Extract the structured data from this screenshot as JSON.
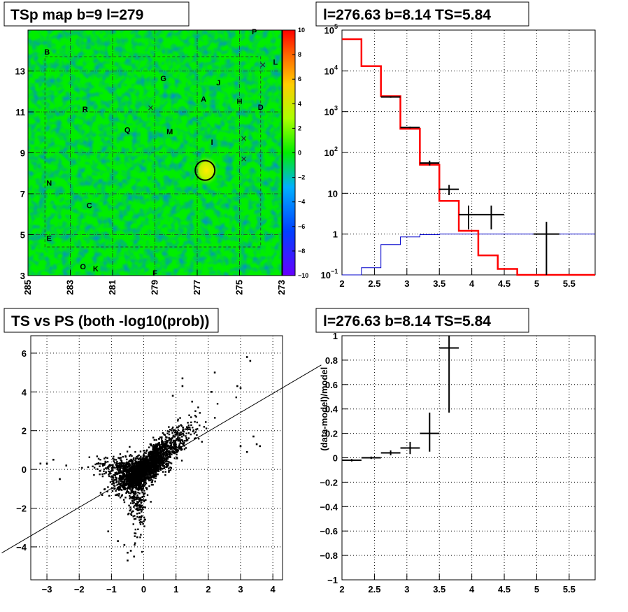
{
  "chart_data": [
    {
      "type": "heatmap",
      "title": "TSp map b=9 l=279",
      "x_ticks": [
        "285",
        "283",
        "281",
        "279",
        "277",
        "275",
        "273"
      ],
      "y_ticks": [
        "3",
        "5",
        "7",
        "9",
        "11",
        "13"
      ],
      "xlim": [
        285,
        273
      ],
      "ylim": [
        3,
        15
      ],
      "colorbar_ticks": [
        "10",
        "8",
        "6",
        "4",
        "2",
        "0",
        "−2",
        "−4",
        "−6",
        "−8",
        "−10"
      ],
      "colorbar_range": [
        -10,
        10
      ],
      "source_labels": [
        {
          "text": "P",
          "l": 274.3,
          "b": 14.8
        },
        {
          "text": "B",
          "l": 284.1,
          "b": 13.8
        },
        {
          "text": "L",
          "l": 273.3,
          "b": 13.3
        },
        {
          "text": "G",
          "l": 278.6,
          "b": 12.5
        },
        {
          "text": "J",
          "l": 276.0,
          "b": 12.3
        },
        {
          "text": "A",
          "l": 276.7,
          "b": 11.5
        },
        {
          "text": "H",
          "l": 275.0,
          "b": 11.4
        },
        {
          "text": "D",
          "l": 274.0,
          "b": 11.1
        },
        {
          "text": "R",
          "l": 282.3,
          "b": 11.0
        },
        {
          "text": "Q",
          "l": 280.3,
          "b": 10.0
        },
        {
          "text": "M",
          "l": 278.3,
          "b": 9.9
        },
        {
          "text": "I",
          "l": 276.3,
          "b": 9.4
        },
        {
          "text": "N",
          "l": 284.0,
          "b": 7.4
        },
        {
          "text": "C",
          "l": 282.1,
          "b": 6.3
        },
        {
          "text": "E",
          "l": 284.0,
          "b": 4.7
        },
        {
          "text": "O",
          "l": 282.4,
          "b": 3.3
        },
        {
          "text": "K",
          "l": 281.8,
          "b": 3.2
        },
        {
          "text": "F",
          "l": 279.0,
          "b": 3.0
        }
      ],
      "marker_circle": {
        "l": 276.63,
        "b": 8.14
      },
      "cross_markers": [
        {
          "l": 279.2,
          "b": 11.2
        },
        {
          "l": 273.9,
          "b": 13.3
        },
        {
          "l": 274.8,
          "b": 9.7
        },
        {
          "l": 274.8,
          "b": 8.7
        }
      ]
    },
    {
      "type": "line",
      "title": "l=276.63 b=8.14 TS=5.84",
      "xlim": [
        2,
        5.9
      ],
      "x_ticks": [
        "2",
        "2.5",
        "3",
        "3.5",
        "4",
        "4.5",
        "5",
        "5.5"
      ],
      "y_scale": "log",
      "ylim": [
        0.1,
        100000
      ],
      "y_ticks": [
        {
          "v": 0.1,
          "base": "10",
          "exp": "−1"
        },
        {
          "v": 1,
          "base": "1",
          "exp": ""
        },
        {
          "v": 10,
          "base": "10",
          "exp": ""
        },
        {
          "v": 100,
          "base": "10",
          "exp": "2"
        },
        {
          "v": 1000,
          "base": "10",
          "exp": "3"
        },
        {
          "v": 10000,
          "base": "10",
          "exp": "4"
        },
        {
          "v": 100000,
          "base": "10",
          "exp": "5"
        }
      ],
      "grid": true,
      "bin_edges": [
        2,
        2.3,
        2.6,
        2.9,
        3.2,
        3.5,
        3.8,
        4.1,
        4.4,
        4.7,
        5.0,
        5.3,
        5.6,
        5.9
      ],
      "model_red": [
        60000,
        13000,
        2400,
        380,
        50,
        6.5,
        1.2,
        0.3,
        0.14,
        0.1,
        0.1,
        0.1,
        0.1
      ],
      "model_blue": [
        0.1,
        0.15,
        0.55,
        0.85,
        0.97,
        1.0,
        1.0,
        1.0,
        1.0,
        1.0,
        1.0,
        1.0,
        1.0
      ],
      "data_points": [
        {
          "x": 2.75,
          "y": 2300,
          "xerr": 0.15,
          "ylo": 2200,
          "yhi": 2400
        },
        {
          "x": 3.05,
          "y": 410,
          "xerr": 0.15,
          "ylo": 390,
          "yhi": 430
        },
        {
          "x": 3.35,
          "y": 55,
          "xerr": 0.15,
          "ylo": 48,
          "yhi": 63
        },
        {
          "x": 3.65,
          "y": 12.5,
          "xerr": 0.15,
          "ylo": 9,
          "yhi": 16
        },
        {
          "x": 3.95,
          "y": 3,
          "xerr": 0.15,
          "ylo": 1.3,
          "yhi": 5
        },
        {
          "x": 4.3,
          "y": 3,
          "xerr": 0.2,
          "ylo": 1.3,
          "yhi": 5
        },
        {
          "x": 5.15,
          "y": 1,
          "xerr": 0.2,
          "ylo": 0.1,
          "yhi": 2
        }
      ]
    },
    {
      "type": "scatter",
      "title": "TS vs PS (both -log10(prob))",
      "xlim": [
        -3.5,
        4.3
      ],
      "ylim": [
        -5.7,
        6.9
      ],
      "x_ticks": [
        {
          "v": -3,
          "t": "−3"
        },
        {
          "v": -2,
          "t": "−2"
        },
        {
          "v": -1,
          "t": "−1"
        },
        {
          "v": 0,
          "t": "0"
        },
        {
          "v": 1,
          "t": "1"
        },
        {
          "v": 2,
          "t": "2"
        },
        {
          "v": 3,
          "t": "3"
        },
        {
          "v": 4,
          "t": "4"
        }
      ],
      "y_ticks": [
        {
          "v": -4,
          "t": "−4"
        },
        {
          "v": -2,
          "t": "−2"
        },
        {
          "v": 0,
          "t": "0"
        },
        {
          "v": 2,
          "t": "2"
        },
        {
          "v": 4,
          "t": "4"
        },
        {
          "v": 6,
          "t": "6"
        }
      ],
      "grid": true,
      "fit_line": {
        "slope": 0.98,
        "intercept": 0.0
      },
      "outlier_points": [
        [
          3.2,
          5.8
        ],
        [
          3.3,
          5.6
        ],
        [
          2.2,
          5.0
        ],
        [
          1.2,
          4.7
        ],
        [
          2.9,
          4.3
        ],
        [
          3.0,
          4.2
        ],
        [
          2.1,
          4.0
        ],
        [
          3.4,
          1.7
        ],
        [
          3.6,
          1.2
        ],
        [
          3.5,
          1.3
        ],
        [
          3.2,
          0.9
        ],
        [
          3.0,
          1.2
        ],
        [
          -3.0,
          0.3
        ],
        [
          -3.2,
          0.3
        ],
        [
          -2.8,
          0.5
        ],
        [
          -2.4,
          0.2
        ],
        [
          -2.6,
          -0.5
        ],
        [
          -0.5,
          -4.3
        ],
        [
          -0.3,
          -4.5
        ],
        [
          -0.5,
          -4.7
        ],
        [
          -0.4,
          -4.2
        ],
        [
          -0.8,
          -3.7
        ],
        [
          -0.6,
          -3.9
        ],
        [
          -1.1,
          -3.2
        ],
        [
          -0.2,
          -3.5
        ],
        [
          1.2,
          4.3
        ],
        [
          0.9,
          3.8
        ],
        [
          1.5,
          3.5
        ]
      ]
    },
    {
      "type": "line",
      "title": "l=276.63 b=8.14 TS=5.84",
      "ylabel": "(data-model)/model",
      "xlim": [
        2,
        5.9
      ],
      "ylim": [
        -1,
        1
      ],
      "x_ticks": [
        "2",
        "2.5",
        "3",
        "3.5",
        "4",
        "4.5",
        "5",
        "5.5"
      ],
      "y_ticks": [
        {
          "v": 1,
          "t": "1"
        },
        {
          "v": 0.8,
          "t": "0.8"
        },
        {
          "v": 0.6,
          "t": "0.6"
        },
        {
          "v": 0.4,
          "t": "0.4"
        },
        {
          "v": 0.2,
          "t": "0.2"
        },
        {
          "v": 0,
          "t": "0"
        },
        {
          "v": -0.2,
          "t": "−0.2"
        },
        {
          "v": -0.4,
          "t": "−0.4"
        },
        {
          "v": -0.6,
          "t": "−0.6"
        },
        {
          "v": -0.8,
          "t": "−0.8"
        },
        {
          "v": -1,
          "t": "−1"
        }
      ],
      "grid": true,
      "data_points": [
        {
          "x": 2.15,
          "y": -0.02,
          "xerr": 0.15,
          "ylo": -0.03,
          "yhi": -0.01
        },
        {
          "x": 2.45,
          "y": 0.0,
          "xerr": 0.15,
          "ylo": -0.01,
          "yhi": 0.01
        },
        {
          "x": 2.75,
          "y": 0.04,
          "xerr": 0.15,
          "ylo": 0.02,
          "yhi": 0.06
        },
        {
          "x": 3.05,
          "y": 0.08,
          "xerr": 0.15,
          "ylo": 0.03,
          "yhi": 0.13
        },
        {
          "x": 3.35,
          "y": 0.2,
          "xerr": 0.15,
          "ylo": 0.05,
          "yhi": 0.37
        },
        {
          "x": 3.65,
          "y": 0.9,
          "xerr": 0.15,
          "ylo": 0.37,
          "yhi": 1.0
        }
      ]
    }
  ]
}
